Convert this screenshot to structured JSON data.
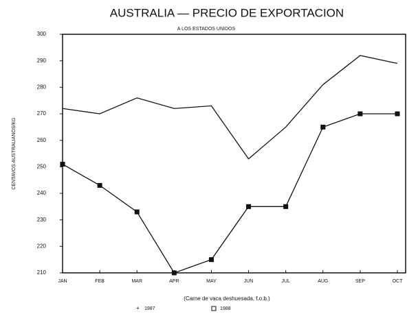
{
  "chart_data": {
    "type": "line",
    "title": "AUSTRALIA — PRECIO DE EXPORTACION",
    "subtitle": "A LOS ESTADOS UNIDOS",
    "y_label": "CENTAVOS AUSTRALIANOS/KG",
    "x_label": "(Carne de vaca deshuesada, f.o.b.)",
    "categories": [
      "JAN",
      "FEB",
      "MAR",
      "APR",
      "MAY",
      "JUN",
      "JUL",
      "AUG",
      "SEP",
      "OCT"
    ],
    "series": [
      {
        "name": "1987",
        "color": "#111111",
        "marker": "none",
        "values": [
          272,
          270,
          276,
          272,
          273,
          253,
          265,
          281,
          292,
          289
        ]
      },
      {
        "name": "1988",
        "color": "#111111",
        "marker": "square",
        "values": [
          251,
          243,
          233,
          210,
          215,
          235,
          235,
          265,
          270,
          270
        ]
      }
    ],
    "ylim": [
      210,
      300
    ],
    "yticks": [
      210,
      220,
      230,
      240,
      250,
      260,
      270,
      280,
      290,
      300
    ],
    "grid": false
  }
}
